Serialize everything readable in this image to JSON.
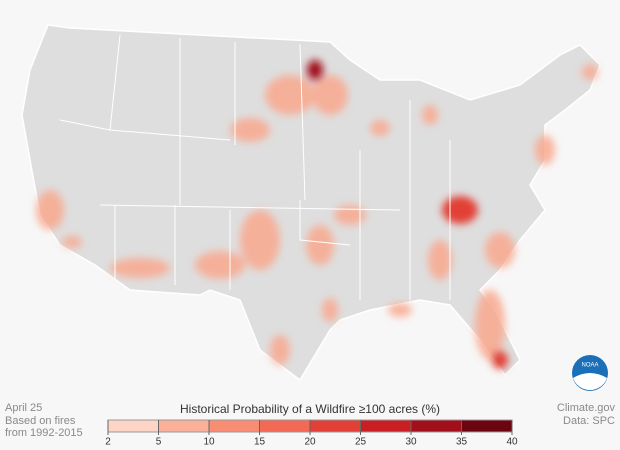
{
  "date": "April 25",
  "note": [
    "Based on fires",
    "from 1992-2015"
  ],
  "legend": {
    "title": "Historical Probability of a Wildfire ≥100 acres (%)",
    "ticks": [
      2,
      5,
      10,
      15,
      20,
      25,
      30,
      35,
      40
    ],
    "colors": [
      "#fdd5c6",
      "#fbb09a",
      "#f98d74",
      "#f26a55",
      "#e23f36",
      "#c91e22",
      "#a10f1a",
      "#6d0510"
    ]
  },
  "credits": [
    "Climate.gov",
    "Data: SPC"
  ],
  "logo": "NOAA"
}
